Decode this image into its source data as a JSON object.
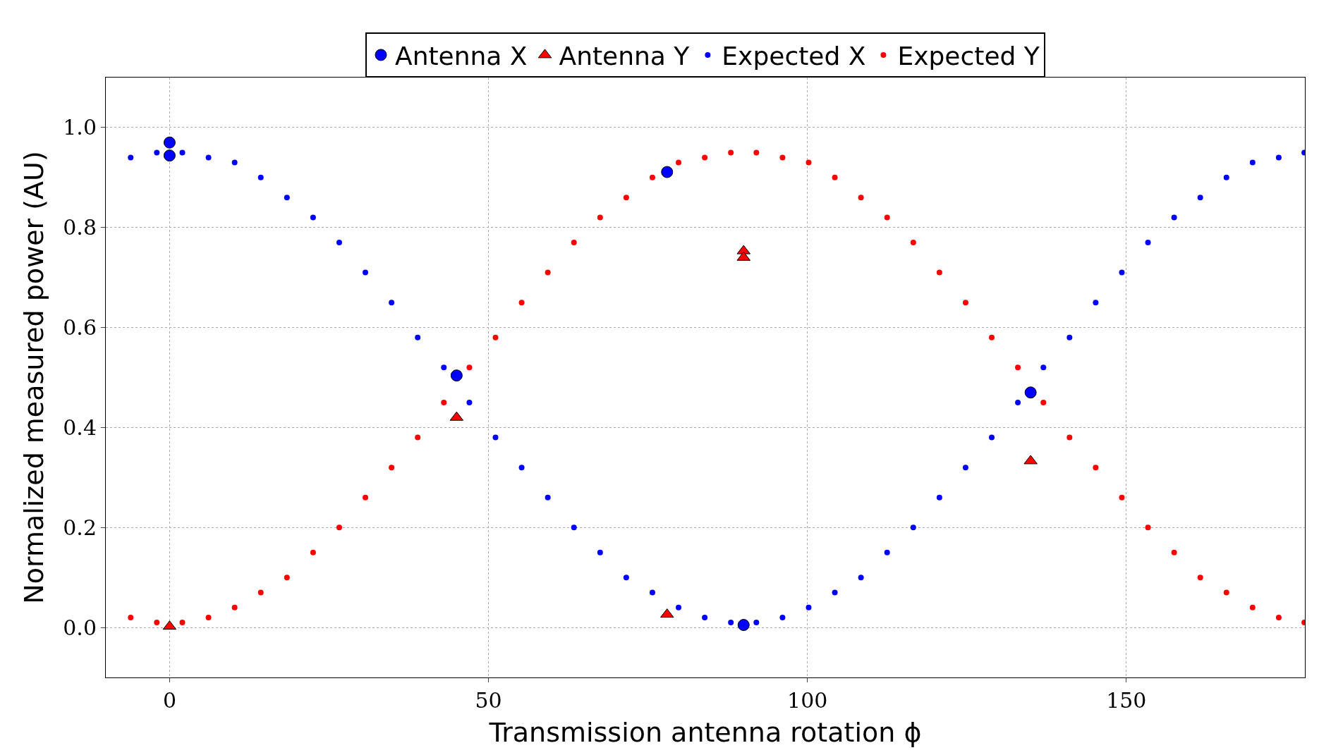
{
  "chart_data": {
    "type": "scatter",
    "xlabel": "Transmission antenna rotation ϕ",
    "ylabel": "Normalized measured power (AU)",
    "xlim": [
      -10,
      178
    ],
    "xticks": [
      0,
      50,
      100,
      150
    ],
    "ylim": [
      -0.1,
      1.1
    ],
    "yticks": [
      {
        "value": 0,
        "label": "0.0"
      },
      {
        "value": 0.2,
        "label": "0.2"
      },
      {
        "value": 0.4,
        "label": "0.4"
      },
      {
        "value": 0.6,
        "label": "0.6"
      },
      {
        "value": 0.8,
        "label": "0.8"
      },
      {
        "value": 1,
        "label": "1.0"
      }
    ],
    "grid": true,
    "legend": "top",
    "series": [
      {
        "name": "Antenna X",
        "color": "#0000ff",
        "marker": "circle",
        "x": [
          0,
          0,
          45,
          78,
          90,
          135
        ],
        "values": [
          0.97,
          0.944,
          0.504,
          0.911,
          0.005,
          0.47
        ]
      },
      {
        "name": "Antenna Y",
        "color": "#ff0000",
        "marker": "triangle",
        "x": [
          0,
          45,
          78,
          90,
          90,
          135
        ],
        "values": [
          0.002,
          0.42,
          0.026,
          0.753,
          0.74,
          0.333
        ]
      },
      {
        "name": "Expected X",
        "color": "#0000ff",
        "marker": "circle",
        "x": [
          -6.1,
          -2.0,
          2.0,
          6.1,
          10.2,
          14.3,
          18.4,
          22.5,
          26.6,
          30.7,
          34.8,
          38.9,
          43.0,
          47.0,
          51.1,
          55.2,
          59.3,
          63.4,
          67.5,
          71.6,
          75.7,
          79.8,
          83.9,
          88.0,
          92.0,
          96.1,
          100.2,
          104.3,
          108.4,
          112.5,
          116.6,
          120.7,
          124.8,
          128.9,
          133.0,
          137.0,
          141.1,
          145.2,
          149.3,
          153.4,
          157.5,
          161.6,
          165.7,
          169.8,
          173.9,
          177.9
        ],
        "values": [
          0.94,
          0.95,
          0.95,
          0.94,
          0.93,
          0.9,
          0.86,
          0.82,
          0.77,
          0.71,
          0.65,
          0.58,
          0.52,
          0.45,
          0.38,
          0.32,
          0.26,
          0.2,
          0.15,
          0.1,
          0.07,
          0.04,
          0.02,
          0.01,
          0.01,
          0.02,
          0.04,
          0.07,
          0.1,
          0.15,
          0.2,
          0.26,
          0.32,
          0.38,
          0.45,
          0.52,
          0.58,
          0.65,
          0.71,
          0.77,
          0.82,
          0.86,
          0.9,
          0.93,
          0.94,
          0.95
        ]
      },
      {
        "name": "Expected Y",
        "color": "#ff0000",
        "marker": "circle",
        "x": [
          -6.1,
          -2.0,
          2.0,
          6.1,
          10.2,
          14.3,
          18.4,
          22.5,
          26.6,
          30.7,
          34.8,
          38.9,
          43.0,
          47.0,
          51.1,
          55.2,
          59.3,
          63.4,
          67.5,
          71.6,
          75.7,
          79.8,
          83.9,
          88.0,
          92.0,
          96.1,
          100.2,
          104.3,
          108.4,
          112.5,
          116.6,
          120.7,
          124.8,
          128.9,
          133.0,
          137.0,
          141.1,
          145.2,
          149.3,
          153.4,
          157.5,
          161.6,
          165.7,
          169.8,
          173.9,
          177.9
        ],
        "values": [
          0.02,
          0.01,
          0.01,
          0.02,
          0.04,
          0.07,
          0.1,
          0.15,
          0.2,
          0.26,
          0.32,
          0.38,
          0.45,
          0.52,
          0.58,
          0.65,
          0.71,
          0.77,
          0.82,
          0.86,
          0.9,
          0.93,
          0.94,
          0.95,
          0.95,
          0.94,
          0.93,
          0.9,
          0.86,
          0.82,
          0.77,
          0.71,
          0.65,
          0.58,
          0.52,
          0.45,
          0.38,
          0.32,
          0.26,
          0.2,
          0.15,
          0.1,
          0.07,
          0.04,
          0.02,
          0.01
        ]
      }
    ]
  }
}
